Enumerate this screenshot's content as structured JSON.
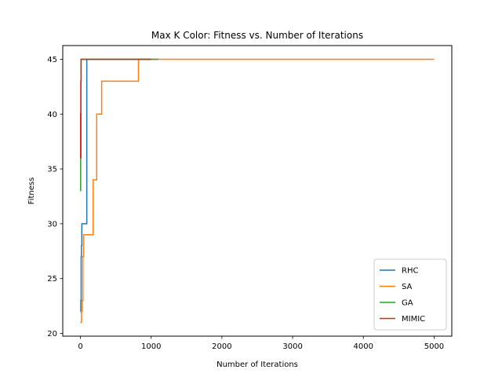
{
  "chart_data": {
    "type": "line",
    "title": "Max K Color: Fitness vs. Number of Iterations",
    "xlabel": "Number of Iterations",
    "ylabel": "Fitness",
    "xlim": [
      -250,
      5250
    ],
    "ylim": [
      19.75,
      46.25
    ],
    "xticks": [
      0,
      1000,
      2000,
      3000,
      4000,
      5000
    ],
    "yticks": [
      20,
      25,
      30,
      35,
      40,
      45
    ],
    "grid": false,
    "legend_position": "lower-right",
    "series": [
      {
        "name": "RHC",
        "color": "#1f77b4",
        "step": true,
        "x": [
          0,
          5,
          10,
          15,
          20,
          30,
          80,
          90,
          1000
        ],
        "y": [
          22,
          23,
          27,
          28,
          30,
          30,
          30,
          45,
          45
        ]
      },
      {
        "name": "SA",
        "color": "#ff7f0e",
        "step": true,
        "x": [
          0,
          15,
          25,
          35,
          45,
          180,
          230,
          300,
          820,
          1000,
          5000
        ],
        "y": [
          21,
          22,
          23,
          27,
          29,
          34,
          40,
          43,
          45,
          45,
          45
        ]
      },
      {
        "name": "GA",
        "color": "#2ca02c",
        "step": true,
        "x": [
          0,
          3,
          8,
          1100
        ],
        "y": [
          33,
          36,
          45,
          45
        ]
      },
      {
        "name": "MIMIC",
        "color": "#d62728",
        "step": true,
        "x": [
          0,
          2,
          5,
          10,
          1000
        ],
        "y": [
          36,
          40,
          43,
          45,
          45
        ]
      }
    ]
  }
}
